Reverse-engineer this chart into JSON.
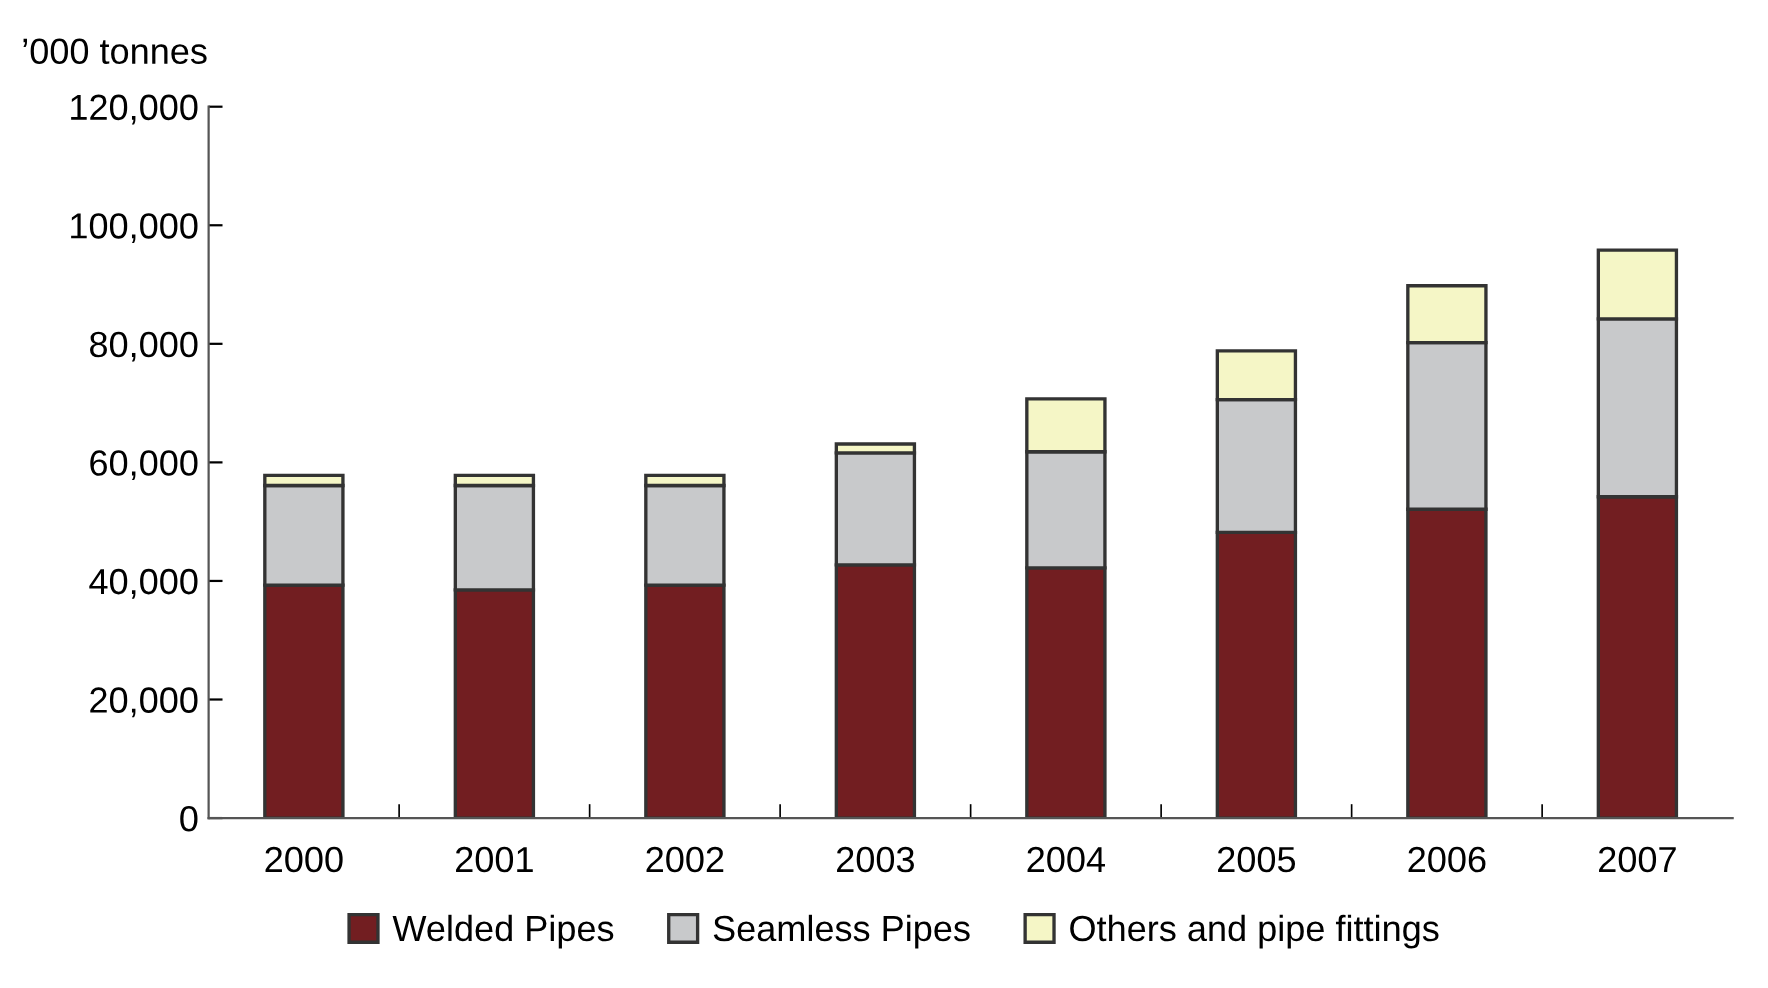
{
  "chart_data": {
    "type": "bar",
    "stacked": true,
    "ylabel": "’000 tonnes",
    "categories": [
      "2000",
      "2001",
      "2002",
      "2003",
      "2004",
      "2005",
      "2006",
      "2007"
    ],
    "series": [
      {
        "name": "Welded Pipes",
        "color": "#721e21",
        "values": [
          39300,
          38500,
          39300,
          42700,
          42200,
          48200,
          52100,
          54200
        ]
      },
      {
        "name": "Seamless Pipes",
        "color": "#c8c9cb",
        "values": [
          16800,
          17600,
          16800,
          18900,
          19600,
          22400,
          28100,
          30000
        ]
      },
      {
        "name": "Others and pipe fittings",
        "color": "#f5f6c6",
        "values": [
          1700,
          1700,
          1700,
          1500,
          8900,
          8200,
          9600,
          11600
        ]
      }
    ],
    "ylim": [
      0,
      120000
    ],
    "yticks": [
      {
        "value": 0,
        "label": "0"
      },
      {
        "value": 20000,
        "label": "20,000"
      },
      {
        "value": 40000,
        "label": "40,000"
      },
      {
        "value": 60000,
        "label": "60,000"
      },
      {
        "value": 80000,
        "label": "80,000"
      },
      {
        "value": 100000,
        "label": "100,000"
      },
      {
        "value": 120000,
        "label": "120,000"
      }
    ],
    "grid": false,
    "legend": "bottom"
  }
}
